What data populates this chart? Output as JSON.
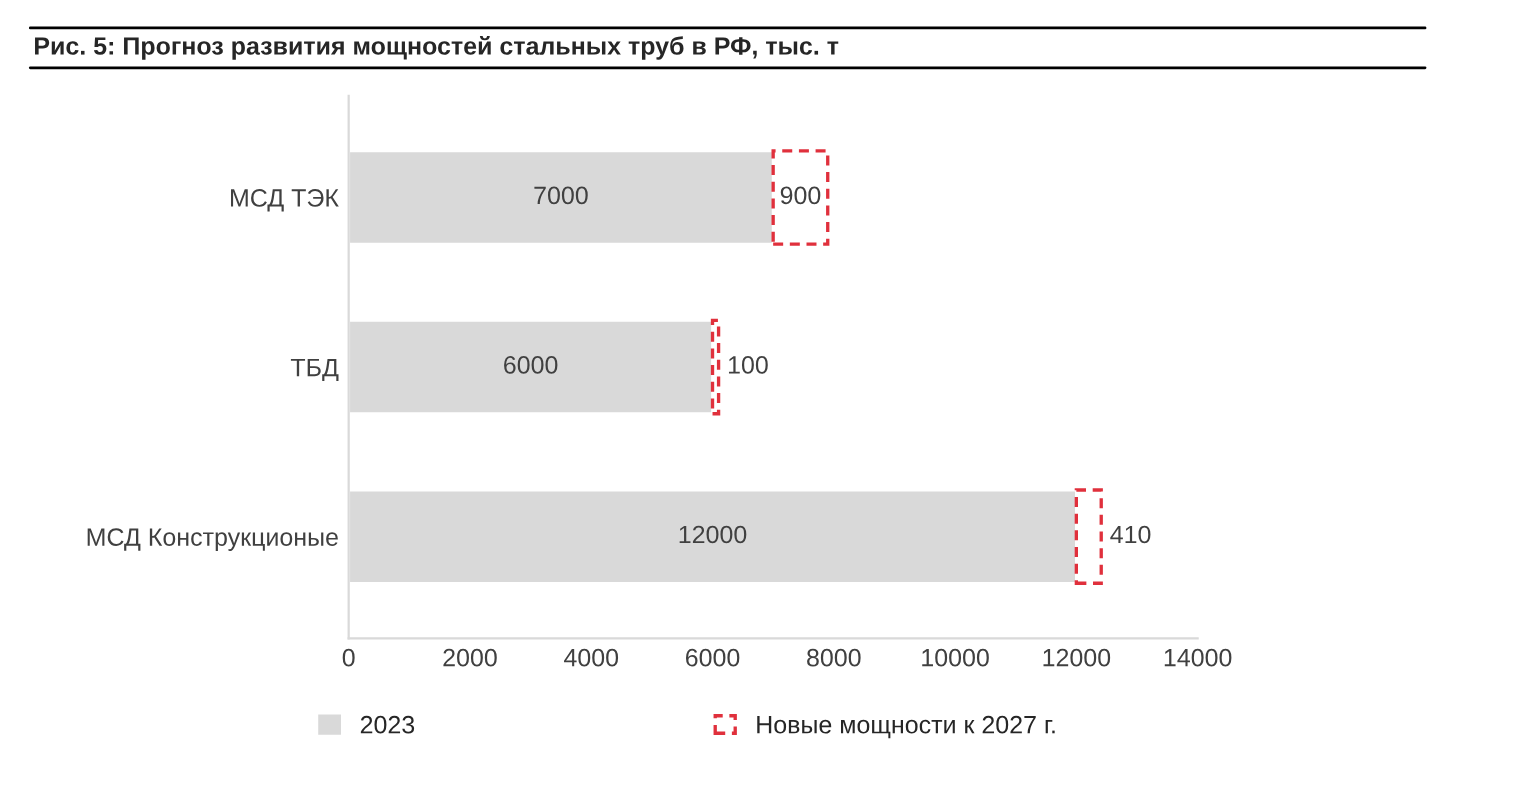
{
  "chart_data": {
    "type": "bar",
    "orientation": "horizontal",
    "stacked": true,
    "title": "Рис. 5: Прогноз развития мощностей стальных труб в РФ, тыс. т",
    "categories": [
      "МСД ТЭК",
      "ТБД",
      "МСД Конструкционые"
    ],
    "series": [
      {
        "name": "2023",
        "color": "#d9d9d9",
        "values": [
          7000,
          6000,
          12000
        ]
      },
      {
        "name": "Новые мощности к 2027 г.",
        "color": "#e0303c",
        "line_style": "dashed",
        "values": [
          900,
          100,
          410
        ]
      }
    ],
    "xlim": [
      0,
      14000
    ],
    "xticks": [
      0,
      2000,
      4000,
      6000,
      8000,
      10000,
      12000,
      14000
    ],
    "data_labels": true,
    "grid": false,
    "legend": "bottom"
  }
}
